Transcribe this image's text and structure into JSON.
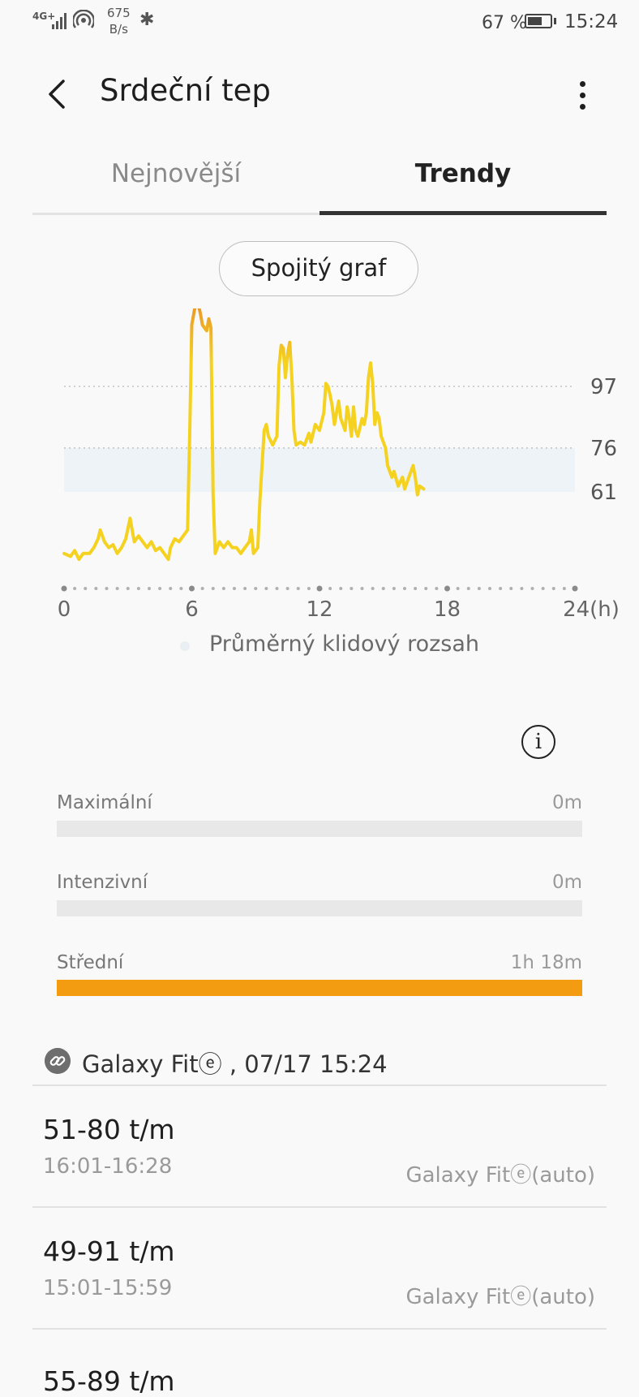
{
  "status_bar": {
    "network": "4G+",
    "speed_value": "675",
    "speed_unit": "B/s",
    "battery_percent": "67 %",
    "battery_level": 0.67,
    "time": "15:24"
  },
  "header": {
    "title": "Srdeční tep",
    "back_icon": "back-arrow-icon",
    "more_icon": "more-vertical-icon"
  },
  "tabs": [
    {
      "label": "Nejnovější",
      "selected": false
    },
    {
      "label": "Trendy",
      "selected": true
    }
  ],
  "view_toggle": {
    "label": "Spojitý graf"
  },
  "chart_data": {
    "type": "line",
    "x_range": [
      0,
      24
    ],
    "x_ticks": [
      "0",
      "6",
      "12",
      "18",
      "24(h)"
    ],
    "y_ref_lines": [
      "97",
      "76",
      "61"
    ],
    "resting_range": [
      61,
      76
    ],
    "legend": "Průměrný klidový rozsah",
    "line_color": "#f5d21f",
    "peak_color": "#e8962a",
    "points": [
      [
        0.0,
        40
      ],
      [
        0.3,
        39
      ],
      [
        0.5,
        41
      ],
      [
        0.7,
        38
      ],
      [
        0.9,
        40
      ],
      [
        1.2,
        40
      ],
      [
        1.4,
        42
      ],
      [
        1.6,
        45
      ],
      [
        1.7,
        48
      ],
      [
        1.9,
        44
      ],
      [
        2.1,
        42
      ],
      [
        2.3,
        43
      ],
      [
        2.5,
        40
      ],
      [
        2.7,
        42
      ],
      [
        2.9,
        45
      ],
      [
        3.1,
        52
      ],
      [
        3.3,
        44
      ],
      [
        3.5,
        46
      ],
      [
        3.7,
        44
      ],
      [
        3.9,
        42
      ],
      [
        4.1,
        44
      ],
      [
        4.3,
        41
      ],
      [
        4.5,
        42
      ],
      [
        4.7,
        40
      ],
      [
        4.9,
        38
      ],
      [
        5.0,
        42
      ],
      [
        5.2,
        45
      ],
      [
        5.4,
        44
      ],
      [
        5.6,
        46
      ],
      [
        5.8,
        48
      ],
      [
        5.9,
        80
      ],
      [
        6.0,
        118
      ],
      [
        6.1,
        122
      ],
      [
        6.2,
        126
      ],
      [
        6.3,
        125
      ],
      [
        6.4,
        122
      ],
      [
        6.5,
        118
      ],
      [
        6.6,
        117
      ],
      [
        6.7,
        116
      ],
      [
        6.8,
        120
      ],
      [
        6.9,
        117
      ],
      [
        7.0,
        60
      ],
      [
        7.1,
        40
      ],
      [
        7.3,
        44
      ],
      [
        7.5,
        42
      ],
      [
        7.7,
        44
      ],
      [
        7.9,
        42
      ],
      [
        8.1,
        42
      ],
      [
        8.3,
        40
      ],
      [
        8.5,
        42
      ],
      [
        8.7,
        44
      ],
      [
        8.8,
        48
      ],
      [
        8.9,
        40
      ],
      [
        9.0,
        41
      ],
      [
        9.1,
        42
      ],
      [
        9.2,
        58
      ],
      [
        9.4,
        82
      ],
      [
        9.5,
        84
      ],
      [
        9.6,
        80
      ],
      [
        9.8,
        77
      ],
      [
        10.0,
        80
      ],
      [
        10.1,
        104
      ],
      [
        10.2,
        111
      ],
      [
        10.3,
        110
      ],
      [
        10.4,
        100
      ],
      [
        10.5,
        108
      ],
      [
        10.6,
        112
      ],
      [
        10.7,
        100
      ],
      [
        10.8,
        82
      ],
      [
        10.9,
        77
      ],
      [
        11.1,
        78
      ],
      [
        11.3,
        77
      ],
      [
        11.5,
        81
      ],
      [
        11.6,
        78
      ],
      [
        11.8,
        84
      ],
      [
        12.0,
        82
      ],
      [
        12.2,
        88
      ],
      [
        12.3,
        98
      ],
      [
        12.4,
        97
      ],
      [
        12.5,
        94
      ],
      [
        12.6,
        90
      ],
      [
        12.7,
        84
      ],
      [
        12.8,
        88
      ],
      [
        12.9,
        92
      ],
      [
        13.0,
        86
      ],
      [
        13.2,
        82
      ],
      [
        13.3,
        90
      ],
      [
        13.4,
        86
      ],
      [
        13.5,
        80
      ],
      [
        13.6,
        90
      ],
      [
        13.7,
        82
      ],
      [
        13.8,
        80
      ],
      [
        14.0,
        86
      ],
      [
        14.1,
        84
      ],
      [
        14.2,
        88
      ],
      [
        14.3,
        100
      ],
      [
        14.4,
        105
      ],
      [
        14.5,
        98
      ],
      [
        14.6,
        84
      ],
      [
        14.7,
        88
      ],
      [
        14.8,
        86
      ],
      [
        14.9,
        80
      ],
      [
        15.1,
        76
      ],
      [
        15.2,
        70
      ],
      [
        15.4,
        66
      ],
      [
        15.5,
        68
      ],
      [
        15.7,
        63
      ],
      [
        15.9,
        66
      ],
      [
        16.0,
        62
      ],
      [
        16.2,
        66
      ],
      [
        16.4,
        70
      ],
      [
        16.5,
        66
      ],
      [
        16.6,
        60
      ],
      [
        16.7,
        63
      ],
      [
        16.9,
        62
      ]
    ]
  },
  "info_icon": "info-icon",
  "zones": [
    {
      "label": "Maximální",
      "value": "0m",
      "fill": 0.0
    },
    {
      "label": "Intenzivní",
      "value": "0m",
      "fill": 0.0
    },
    {
      "label": "Střední",
      "value": "1h 18m",
      "fill": 1.0
    }
  ],
  "source": {
    "icon": "link-icon",
    "text": "Galaxy Fitⓔ , 07/17 15:24"
  },
  "records": [
    {
      "range": "51-80 t/m",
      "time": "16:01-16:28",
      "source": "Galaxy Fitⓔ(auto)"
    },
    {
      "range": "49-91 t/m",
      "time": "15:01-15:59",
      "source": "Galaxy Fitⓔ(auto)"
    },
    {
      "range": "55-89 t/m",
      "time": "",
      "source": ""
    }
  ]
}
